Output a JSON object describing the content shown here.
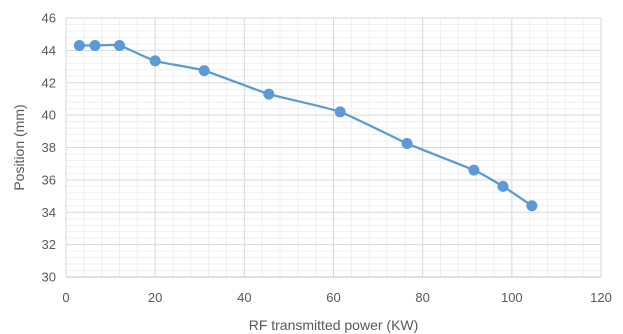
{
  "chart_data": {
    "type": "line",
    "title": "",
    "xlabel": "RF  transmitted power (KW)",
    "ylabel": "Position (mm)",
    "xlim": [
      0,
      120
    ],
    "ylim": [
      30,
      46
    ],
    "x_ticks": [
      0,
      20,
      40,
      60,
      80,
      100,
      120
    ],
    "y_ticks": [
      30,
      32,
      34,
      36,
      38,
      40,
      42,
      44,
      46
    ],
    "x_minor_step": 4,
    "y_minor_step": 0.4,
    "grid": true,
    "legend": "none",
    "series": [
      {
        "color": "#5b9bd5",
        "x": [
          3,
          6.5,
          12,
          20,
          31,
          45.5,
          61.5,
          76.5,
          91.5,
          98,
          104.5
        ],
        "y": [
          44.3,
          44.3,
          44.3,
          43.35,
          42.75,
          41.3,
          40.2,
          38.25,
          36.6,
          35.6,
          34.4
        ]
      }
    ]
  }
}
